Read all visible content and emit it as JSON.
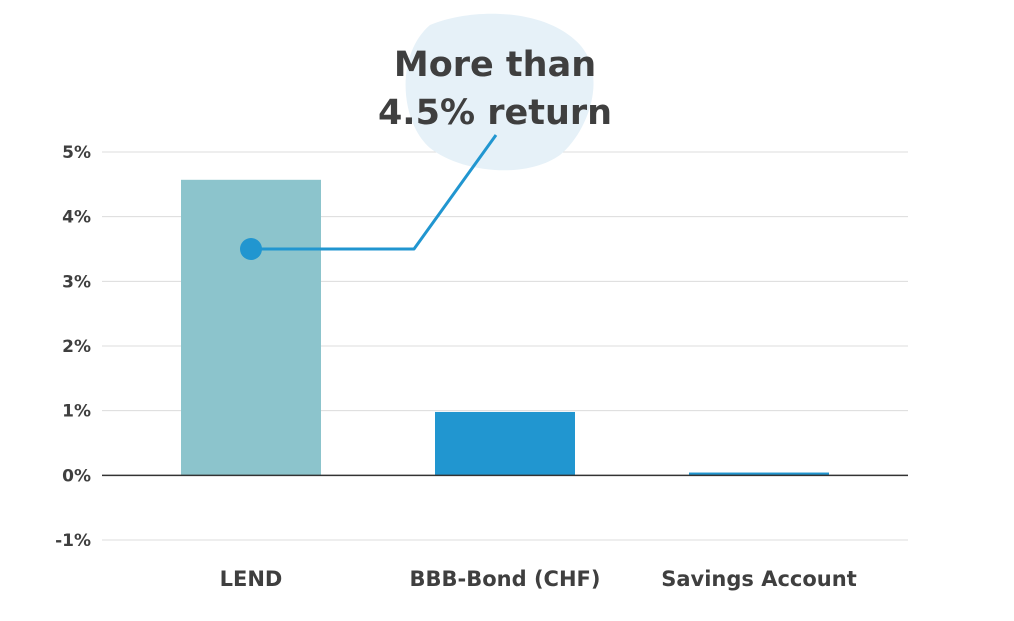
{
  "chart_data": {
    "type": "bar",
    "categories": [
      "LEND",
      "BBB-Bond (CHF)",
      "Savings Account"
    ],
    "values": [
      4.57,
      0.98,
      0.02
    ],
    "bar_colors": [
      "#8cc4cc",
      "#2196d0",
      "#2196d0"
    ],
    "y_ticks": [
      {
        "value": -1,
        "label": "-1%"
      },
      {
        "value": 0,
        "label": "0%"
      },
      {
        "value": 1,
        "label": "1%"
      },
      {
        "value": 2,
        "label": "2%"
      },
      {
        "value": 3,
        "label": "3%"
      },
      {
        "value": 4,
        "label": "4%"
      },
      {
        "value": 5,
        "label": "5%"
      }
    ],
    "ylim": [
      -1,
      5
    ],
    "grid": true,
    "annotation": {
      "lines": [
        "More than",
        "4.5% return"
      ],
      "target_category": "LEND",
      "target_value": 3.5,
      "marker_color": "#2196d0",
      "blob_color": "#e6f1f8"
    },
    "colors": {
      "grid": "#dcdcdc",
      "zero_line": "#333333",
      "text": "#3f3f3f"
    }
  }
}
